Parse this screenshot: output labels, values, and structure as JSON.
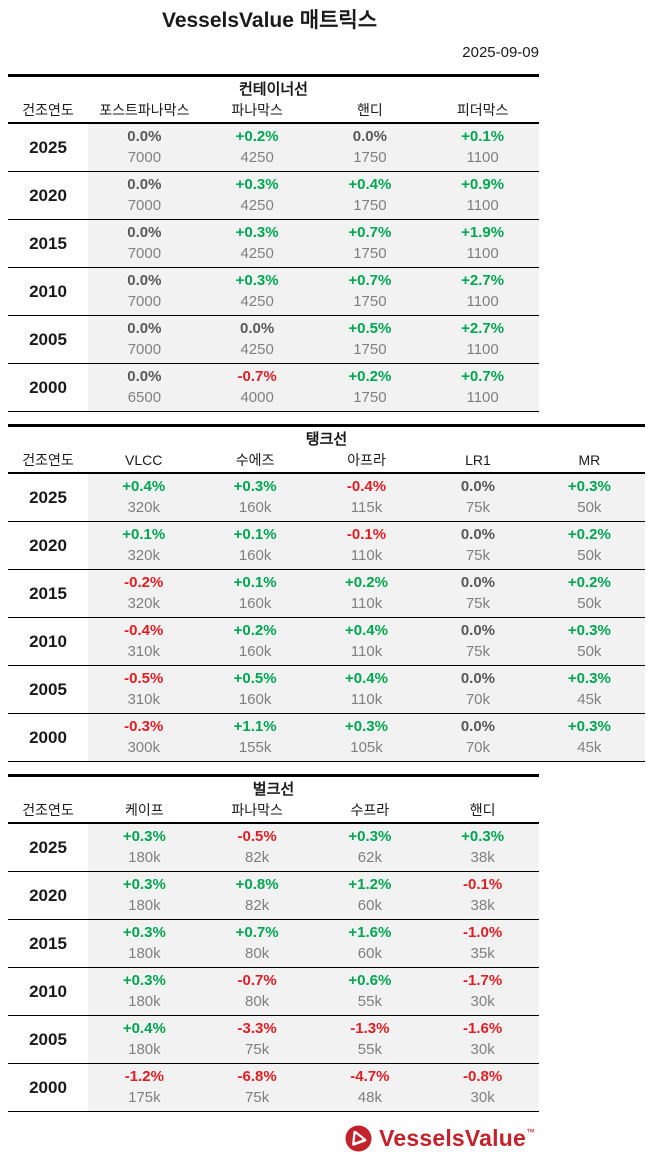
{
  "header": {
    "title": "VesselsValue 매트릭스",
    "date": "2025-09-09"
  },
  "colors": {
    "positive": "#00a651",
    "negative": "#e01e25",
    "zero": "#595959",
    "value_gray": "#808080",
    "cell_bg": "#f2f2f2",
    "brand_red": "#c3222a"
  },
  "sections": [
    {
      "title": "컨테이너선",
      "columns": [
        "건조연도",
        "포스트파나막스",
        "파나막스",
        "핸디",
        "피더막스"
      ],
      "rows": [
        {
          "year": "2025",
          "cells": [
            {
              "pct": "0.0%",
              "value": "7000"
            },
            {
              "pct": "+0.2%",
              "value": "4250"
            },
            {
              "pct": "0.0%",
              "value": "1750"
            },
            {
              "pct": "+0.1%",
              "value": "1100"
            }
          ]
        },
        {
          "year": "2020",
          "cells": [
            {
              "pct": "0.0%",
              "value": "7000"
            },
            {
              "pct": "+0.3%",
              "value": "4250"
            },
            {
              "pct": "+0.4%",
              "value": "1750"
            },
            {
              "pct": "+0.9%",
              "value": "1100"
            }
          ]
        },
        {
          "year": "2015",
          "cells": [
            {
              "pct": "0.0%",
              "value": "7000"
            },
            {
              "pct": "+0.3%",
              "value": "4250"
            },
            {
              "pct": "+0.7%",
              "value": "1750"
            },
            {
              "pct": "+1.9%",
              "value": "1100"
            }
          ]
        },
        {
          "year": "2010",
          "cells": [
            {
              "pct": "0.0%",
              "value": "7000"
            },
            {
              "pct": "+0.3%",
              "value": "4250"
            },
            {
              "pct": "+0.7%",
              "value": "1750"
            },
            {
              "pct": "+2.7%",
              "value": "1100"
            }
          ]
        },
        {
          "year": "2005",
          "cells": [
            {
              "pct": "0.0%",
              "value": "7000"
            },
            {
              "pct": "0.0%",
              "value": "4250"
            },
            {
              "pct": "+0.5%",
              "value": "1750"
            },
            {
              "pct": "+2.7%",
              "value": "1100"
            }
          ]
        },
        {
          "year": "2000",
          "cells": [
            {
              "pct": "0.0%",
              "value": "6500"
            },
            {
              "pct": "-0.7%",
              "value": "4000"
            },
            {
              "pct": "+0.2%",
              "value": "1750"
            },
            {
              "pct": "+0.7%",
              "value": "1100"
            }
          ]
        }
      ]
    },
    {
      "title": "탱크선",
      "columns": [
        "건조연도",
        "VLCC",
        "수에즈",
        "아프라",
        "LR1",
        "MR"
      ],
      "rows": [
        {
          "year": "2025",
          "cells": [
            {
              "pct": "+0.4%",
              "value": "320k"
            },
            {
              "pct": "+0.3%",
              "value": "160k"
            },
            {
              "pct": "-0.4%",
              "value": "115k"
            },
            {
              "pct": "0.0%",
              "value": "75k"
            },
            {
              "pct": "+0.3%",
              "value": "50k"
            }
          ]
        },
        {
          "year": "2020",
          "cells": [
            {
              "pct": "+0.1%",
              "value": "320k"
            },
            {
              "pct": "+0.1%",
              "value": "160k"
            },
            {
              "pct": "-0.1%",
              "value": "110k"
            },
            {
              "pct": "0.0%",
              "value": "75k"
            },
            {
              "pct": "+0.2%",
              "value": "50k"
            }
          ]
        },
        {
          "year": "2015",
          "cells": [
            {
              "pct": "-0.2%",
              "value": "320k"
            },
            {
              "pct": "+0.1%",
              "value": "160k"
            },
            {
              "pct": "+0.2%",
              "value": "110k"
            },
            {
              "pct": "0.0%",
              "value": "75k"
            },
            {
              "pct": "+0.2%",
              "value": "50k"
            }
          ]
        },
        {
          "year": "2010",
          "cells": [
            {
              "pct": "-0.4%",
              "value": "310k"
            },
            {
              "pct": "+0.2%",
              "value": "160k"
            },
            {
              "pct": "+0.4%",
              "value": "110k"
            },
            {
              "pct": "0.0%",
              "value": "75k"
            },
            {
              "pct": "+0.3%",
              "value": "50k"
            }
          ]
        },
        {
          "year": "2005",
          "cells": [
            {
              "pct": "-0.5%",
              "value": "310k"
            },
            {
              "pct": "+0.5%",
              "value": "160k"
            },
            {
              "pct": "+0.4%",
              "value": "110k"
            },
            {
              "pct": "0.0%",
              "value": "70k"
            },
            {
              "pct": "+0.3%",
              "value": "45k"
            }
          ]
        },
        {
          "year": "2000",
          "cells": [
            {
              "pct": "-0.3%",
              "value": "300k"
            },
            {
              "pct": "+1.1%",
              "value": "155k"
            },
            {
              "pct": "+0.3%",
              "value": "105k"
            },
            {
              "pct": "0.0%",
              "value": "70k"
            },
            {
              "pct": "+0.3%",
              "value": "45k"
            }
          ]
        }
      ]
    },
    {
      "title": "벌크선",
      "columns": [
        "건조연도",
        "케이프",
        "파나막스",
        "수프라",
        "핸디"
      ],
      "rows": [
        {
          "year": "2025",
          "cells": [
            {
              "pct": "+0.3%",
              "value": "180k"
            },
            {
              "pct": "-0.5%",
              "value": "82k"
            },
            {
              "pct": "+0.3%",
              "value": "62k"
            },
            {
              "pct": "+0.3%",
              "value": "38k"
            }
          ]
        },
        {
          "year": "2020",
          "cells": [
            {
              "pct": "+0.3%",
              "value": "180k"
            },
            {
              "pct": "+0.8%",
              "value": "82k"
            },
            {
              "pct": "+1.2%",
              "value": "60k"
            },
            {
              "pct": "-0.1%",
              "value": "38k"
            }
          ]
        },
        {
          "year": "2015",
          "cells": [
            {
              "pct": "+0.3%",
              "value": "180k"
            },
            {
              "pct": "+0.7%",
              "value": "80k"
            },
            {
              "pct": "+1.6%",
              "value": "60k"
            },
            {
              "pct": "-1.0%",
              "value": "35k"
            }
          ]
        },
        {
          "year": "2010",
          "cells": [
            {
              "pct": "+0.3%",
              "value": "180k"
            },
            {
              "pct": "-0.7%",
              "value": "80k"
            },
            {
              "pct": "+0.6%",
              "value": "55k"
            },
            {
              "pct": "-1.7%",
              "value": "30k"
            }
          ]
        },
        {
          "year": "2005",
          "cells": [
            {
              "pct": "+0.4%",
              "value": "180k"
            },
            {
              "pct": "-3.3%",
              "value": "75k"
            },
            {
              "pct": "-1.3%",
              "value": "55k"
            },
            {
              "pct": "-1.6%",
              "value": "30k"
            }
          ]
        },
        {
          "year": "2000",
          "cells": [
            {
              "pct": "-1.2%",
              "value": "175k"
            },
            {
              "pct": "-6.8%",
              "value": "75k"
            },
            {
              "pct": "-4.7%",
              "value": "48k"
            },
            {
              "pct": "-0.8%",
              "value": "30k"
            }
          ]
        }
      ]
    }
  ],
  "footer": {
    "logo_text": "VesselsValue",
    "trademark": "™"
  }
}
